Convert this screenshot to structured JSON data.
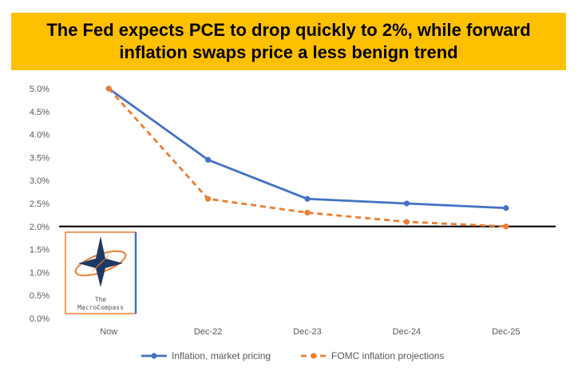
{
  "banner": {
    "title": "The Fed expects PCE to drop quickly to 2%, while forward inflation swaps price a less benign trend"
  },
  "logo": {
    "line1": "The",
    "line2": "MacroCompass",
    "colors": {
      "navy": "#1f3864",
      "orange": "#ed7d31",
      "blue": "#4472c4"
    }
  },
  "chart_data": {
    "type": "line",
    "categories": [
      "Now",
      "Dec-22",
      "Dec-23",
      "Dec-24",
      "Dec-25"
    ],
    "series": [
      {
        "name": "Inflation, market pricing",
        "values": [
          5.0,
          3.45,
          2.6,
          2.5,
          2.4
        ],
        "color": "#4472c4",
        "style": "solid"
      },
      {
        "name": "FOMC inflation projections",
        "values": [
          5.0,
          2.6,
          2.3,
          2.1,
          2.0
        ],
        "color": "#ed7d31",
        "style": "dashed"
      }
    ],
    "ylim": [
      0,
      5
    ],
    "yticks": [
      "0.0%",
      "0.5%",
      "1.0%",
      "1.5%",
      "2.0%",
      "2.5%",
      "3.0%",
      "3.5%",
      "4.0%",
      "4.5%",
      "5.0%"
    ],
    "reference_line": {
      "value": 2.0,
      "color": "#000000"
    },
    "grid": false,
    "legend": "bottom",
    "title": "",
    "xlabel": "",
    "ylabel": ""
  }
}
